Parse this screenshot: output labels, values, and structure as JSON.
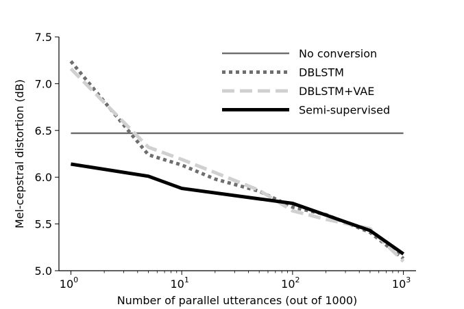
{
  "chart_data": {
    "type": "line",
    "xlabel": "Number of parallel utterances (out of 1000)",
    "ylabel": "Mel-cepstral distortion (dB)",
    "xscale": "log",
    "xlim": [
      0.78,
      1300
    ],
    "ylim": [
      5.0,
      7.5
    ],
    "x_ticks": [
      {
        "value": 1,
        "base": "10",
        "exp": "0"
      },
      {
        "value": 10,
        "base": "10",
        "exp": "1"
      },
      {
        "value": 100,
        "base": "10",
        "exp": "2"
      },
      {
        "value": 1000,
        "base": "10",
        "exp": "3"
      }
    ],
    "y_ticks": [
      "5.0",
      "5.5",
      "6.0",
      "6.5",
      "7.0",
      "7.5"
    ],
    "grid": false,
    "legend_position": "top-right",
    "series": [
      {
        "name": "No conversion",
        "style": "solid",
        "color": "#6e6e6e",
        "x": [
          1,
          1000
        ],
        "y": [
          6.47,
          6.47
        ]
      },
      {
        "name": "DBLSTM",
        "style": "dotted",
        "color": "#6e6e6e",
        "x": [
          1,
          5,
          10,
          20,
          50,
          100,
          200,
          500,
          1000
        ],
        "y": [
          7.24,
          6.24,
          6.13,
          5.98,
          5.85,
          5.68,
          5.6,
          5.41,
          5.13
        ]
      },
      {
        "name": "DBLSTM+VAE",
        "style": "dashed",
        "color": "#d0d0d0",
        "x": [
          1,
          5,
          10,
          20,
          50,
          100,
          200,
          500,
          1000
        ],
        "y": [
          7.16,
          6.32,
          6.19,
          6.05,
          5.86,
          5.64,
          5.55,
          5.45,
          5.1
        ]
      },
      {
        "name": "Semi-supervised",
        "style": "solid-thick",
        "color": "#000000",
        "x": [
          1,
          5,
          10,
          100,
          500,
          1000
        ],
        "y": [
          6.14,
          6.01,
          5.88,
          5.72,
          5.43,
          5.18
        ]
      }
    ]
  }
}
